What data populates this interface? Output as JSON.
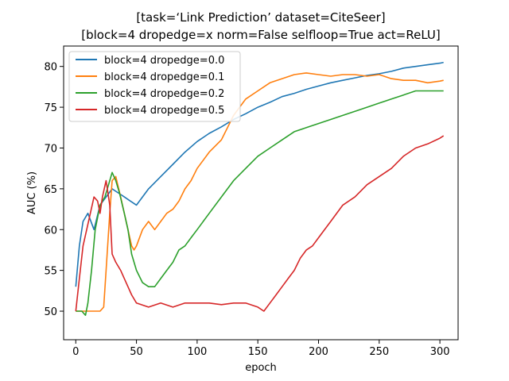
{
  "chart_data": {
    "type": "line",
    "title_line1": "[task=‘Link Prediction’ dataset=CiteSeer]",
    "title_line2": "[block=4 dropedge=x norm=False selfloop=True act=ReLU]",
    "xlabel": "epoch",
    "ylabel": "AUC (%)",
    "xlim": [
      -10,
      315
    ],
    "ylim": [
      46.5,
      82.5
    ],
    "xticks": [
      0,
      50,
      100,
      150,
      200,
      250,
      300
    ],
    "yticks": [
      50,
      55,
      60,
      65,
      70,
      75,
      80
    ],
    "grid": false,
    "legend_position": "top-left",
    "series": [
      {
        "name": "block=4 dropedge=0.0",
        "color": "#1f77b4",
        "points": [
          [
            0,
            53
          ],
          [
            3,
            58
          ],
          [
            6,
            61
          ],
          [
            10,
            62
          ],
          [
            15,
            60
          ],
          [
            20,
            63
          ],
          [
            25,
            64
          ],
          [
            30,
            65
          ],
          [
            35,
            64.5
          ],
          [
            40,
            64
          ],
          [
            45,
            63.5
          ],
          [
            50,
            63
          ],
          [
            55,
            64
          ],
          [
            60,
            65
          ],
          [
            70,
            66.5
          ],
          [
            80,
            68
          ],
          [
            90,
            69.5
          ],
          [
            100,
            70.8
          ],
          [
            110,
            71.8
          ],
          [
            120,
            72.6
          ],
          [
            130,
            73.5
          ],
          [
            140,
            74.2
          ],
          [
            150,
            75
          ],
          [
            160,
            75.6
          ],
          [
            170,
            76.3
          ],
          [
            180,
            76.7
          ],
          [
            190,
            77.2
          ],
          [
            200,
            77.6
          ],
          [
            210,
            78
          ],
          [
            220,
            78.3
          ],
          [
            230,
            78.6
          ],
          [
            240,
            78.9
          ],
          [
            250,
            79.1
          ],
          [
            260,
            79.4
          ],
          [
            270,
            79.8
          ],
          [
            280,
            80
          ],
          [
            290,
            80.2
          ],
          [
            300,
            80.4
          ],
          [
            303,
            80.5
          ]
        ]
      },
      {
        "name": "block=4 dropedge=0.1",
        "color": "#ff7f0e",
        "points": [
          [
            0,
            50
          ],
          [
            5,
            50
          ],
          [
            10,
            50
          ],
          [
            15,
            50
          ],
          [
            20,
            50
          ],
          [
            23,
            50.5
          ],
          [
            25,
            55
          ],
          [
            28,
            62
          ],
          [
            30,
            66
          ],
          [
            33,
            66.5
          ],
          [
            37,
            64
          ],
          [
            40,
            62
          ],
          [
            43,
            60
          ],
          [
            46,
            58
          ],
          [
            48,
            57.5
          ],
          [
            50,
            58
          ],
          [
            55,
            60
          ],
          [
            60,
            61
          ],
          [
            65,
            60
          ],
          [
            70,
            61
          ],
          [
            75,
            62
          ],
          [
            80,
            62.5
          ],
          [
            85,
            63.5
          ],
          [
            90,
            65
          ],
          [
            95,
            66
          ],
          [
            100,
            67.5
          ],
          [
            110,
            69.5
          ],
          [
            120,
            71
          ],
          [
            130,
            74
          ],
          [
            140,
            76
          ],
          [
            150,
            77
          ],
          [
            160,
            78
          ],
          [
            170,
            78.5
          ],
          [
            180,
            79
          ],
          [
            190,
            79.2
          ],
          [
            200,
            79
          ],
          [
            210,
            78.8
          ],
          [
            220,
            79
          ],
          [
            230,
            79
          ],
          [
            240,
            78.8
          ],
          [
            250,
            79
          ],
          [
            260,
            78.5
          ],
          [
            270,
            78.3
          ],
          [
            280,
            78.3
          ],
          [
            290,
            78
          ],
          [
            300,
            78.2
          ],
          [
            303,
            78.3
          ]
        ]
      },
      {
        "name": "block=4 dropedge=0.2",
        "color": "#2ca02c",
        "points": [
          [
            0,
            50
          ],
          [
            5,
            50
          ],
          [
            8,
            49.5
          ],
          [
            10,
            51
          ],
          [
            13,
            55
          ],
          [
            16,
            60
          ],
          [
            20,
            63
          ],
          [
            24,
            64
          ],
          [
            28,
            66
          ],
          [
            30,
            67
          ],
          [
            33,
            66
          ],
          [
            36,
            64.5
          ],
          [
            40,
            62
          ],
          [
            43,
            60
          ],
          [
            46,
            57
          ],
          [
            50,
            55
          ],
          [
            55,
            53.5
          ],
          [
            60,
            53
          ],
          [
            65,
            53
          ],
          [
            70,
            54
          ],
          [
            75,
            55
          ],
          [
            80,
            56
          ],
          [
            85,
            57.5
          ],
          [
            90,
            58
          ],
          [
            95,
            59
          ],
          [
            100,
            60
          ],
          [
            110,
            62
          ],
          [
            120,
            64
          ],
          [
            130,
            66
          ],
          [
            140,
            67.5
          ],
          [
            150,
            69
          ],
          [
            160,
            70
          ],
          [
            170,
            71
          ],
          [
            180,
            72
          ],
          [
            190,
            72.5
          ],
          [
            200,
            73
          ],
          [
            210,
            73.5
          ],
          [
            220,
            74
          ],
          [
            230,
            74.5
          ],
          [
            240,
            75
          ],
          [
            250,
            75.5
          ],
          [
            260,
            76
          ],
          [
            270,
            76.5
          ],
          [
            280,
            77
          ],
          [
            290,
            77
          ],
          [
            300,
            77
          ],
          [
            303,
            77
          ]
        ]
      },
      {
        "name": "block=4 dropedge=0.5",
        "color": "#d62728",
        "points": [
          [
            0,
            50
          ],
          [
            3,
            54
          ],
          [
            6,
            58
          ],
          [
            9,
            60
          ],
          [
            12,
            62
          ],
          [
            15,
            64
          ],
          [
            18,
            63.5
          ],
          [
            20,
            62
          ],
          [
            22,
            64
          ],
          [
            25,
            66
          ],
          [
            28,
            63
          ],
          [
            30,
            57
          ],
          [
            33,
            56
          ],
          [
            37,
            55
          ],
          [
            40,
            54
          ],
          [
            43,
            53
          ],
          [
            46,
            52
          ],
          [
            50,
            51
          ],
          [
            60,
            50.5
          ],
          [
            70,
            51
          ],
          [
            80,
            50.5
          ],
          [
            90,
            51
          ],
          [
            100,
            51
          ],
          [
            110,
            51
          ],
          [
            120,
            50.8
          ],
          [
            130,
            51
          ],
          [
            140,
            51
          ],
          [
            150,
            50.5
          ],
          [
            155,
            50
          ],
          [
            160,
            51
          ],
          [
            165,
            52
          ],
          [
            170,
            53
          ],
          [
            175,
            54
          ],
          [
            180,
            55
          ],
          [
            185,
            56.5
          ],
          [
            190,
            57.5
          ],
          [
            195,
            58
          ],
          [
            200,
            59
          ],
          [
            210,
            61
          ],
          [
            220,
            63
          ],
          [
            230,
            64
          ],
          [
            240,
            65.5
          ],
          [
            250,
            66.5
          ],
          [
            260,
            67.5
          ],
          [
            270,
            69
          ],
          [
            280,
            70
          ],
          [
            290,
            70.5
          ],
          [
            300,
            71.2
          ],
          [
            303,
            71.5
          ]
        ]
      }
    ]
  }
}
